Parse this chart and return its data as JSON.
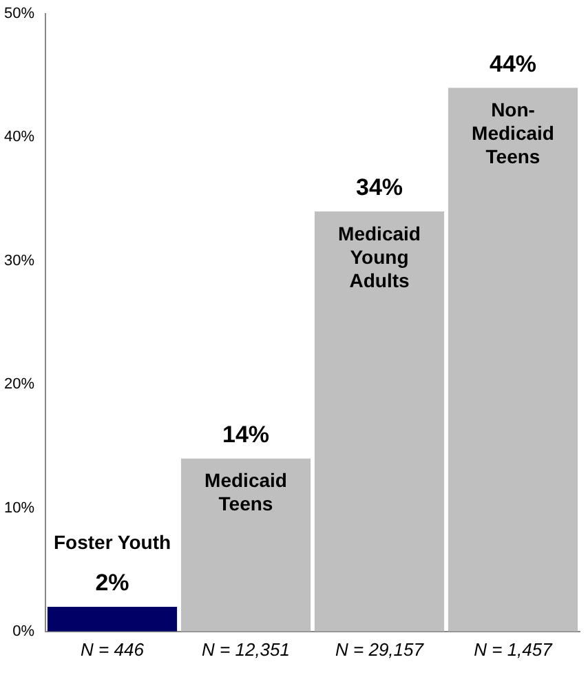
{
  "chart_data": {
    "type": "bar",
    "categories": [
      "N = 446",
      "N = 12,351",
      "N = 29,157",
      "N = 1,457"
    ],
    "values": [
      2,
      14,
      34,
      44
    ],
    "colors": [
      "#000066",
      "#bfbfbf",
      "#bfbfbf",
      "#bfbfbf"
    ],
    "value_labels": [
      "2%",
      "14%",
      "34%",
      "44%"
    ],
    "ylim": [
      0,
      50
    ],
    "yticks": [
      {
        "value": 0,
        "label": "0%"
      },
      {
        "value": 10,
        "label": "10%"
      },
      {
        "value": 20,
        "label": "20%"
      },
      {
        "value": 30,
        "label": "30%"
      },
      {
        "value": 40,
        "label": "40%"
      },
      {
        "value": 50,
        "label": "50%"
      }
    ],
    "annotations": [
      {
        "text": "Foster Youth",
        "x": "N = 446",
        "y": 2
      },
      {
        "text": "Medicaid Teens",
        "x": "N = 12,351",
        "y": 14
      },
      {
        "text": "Medicaid Young Adults",
        "x": "N = 29,157",
        "y": 34
      },
      {
        "text": "Non-Medicaid Teens",
        "x": "N = 1,457",
        "y": 44
      }
    ],
    "grid": false,
    "legend": false
  }
}
